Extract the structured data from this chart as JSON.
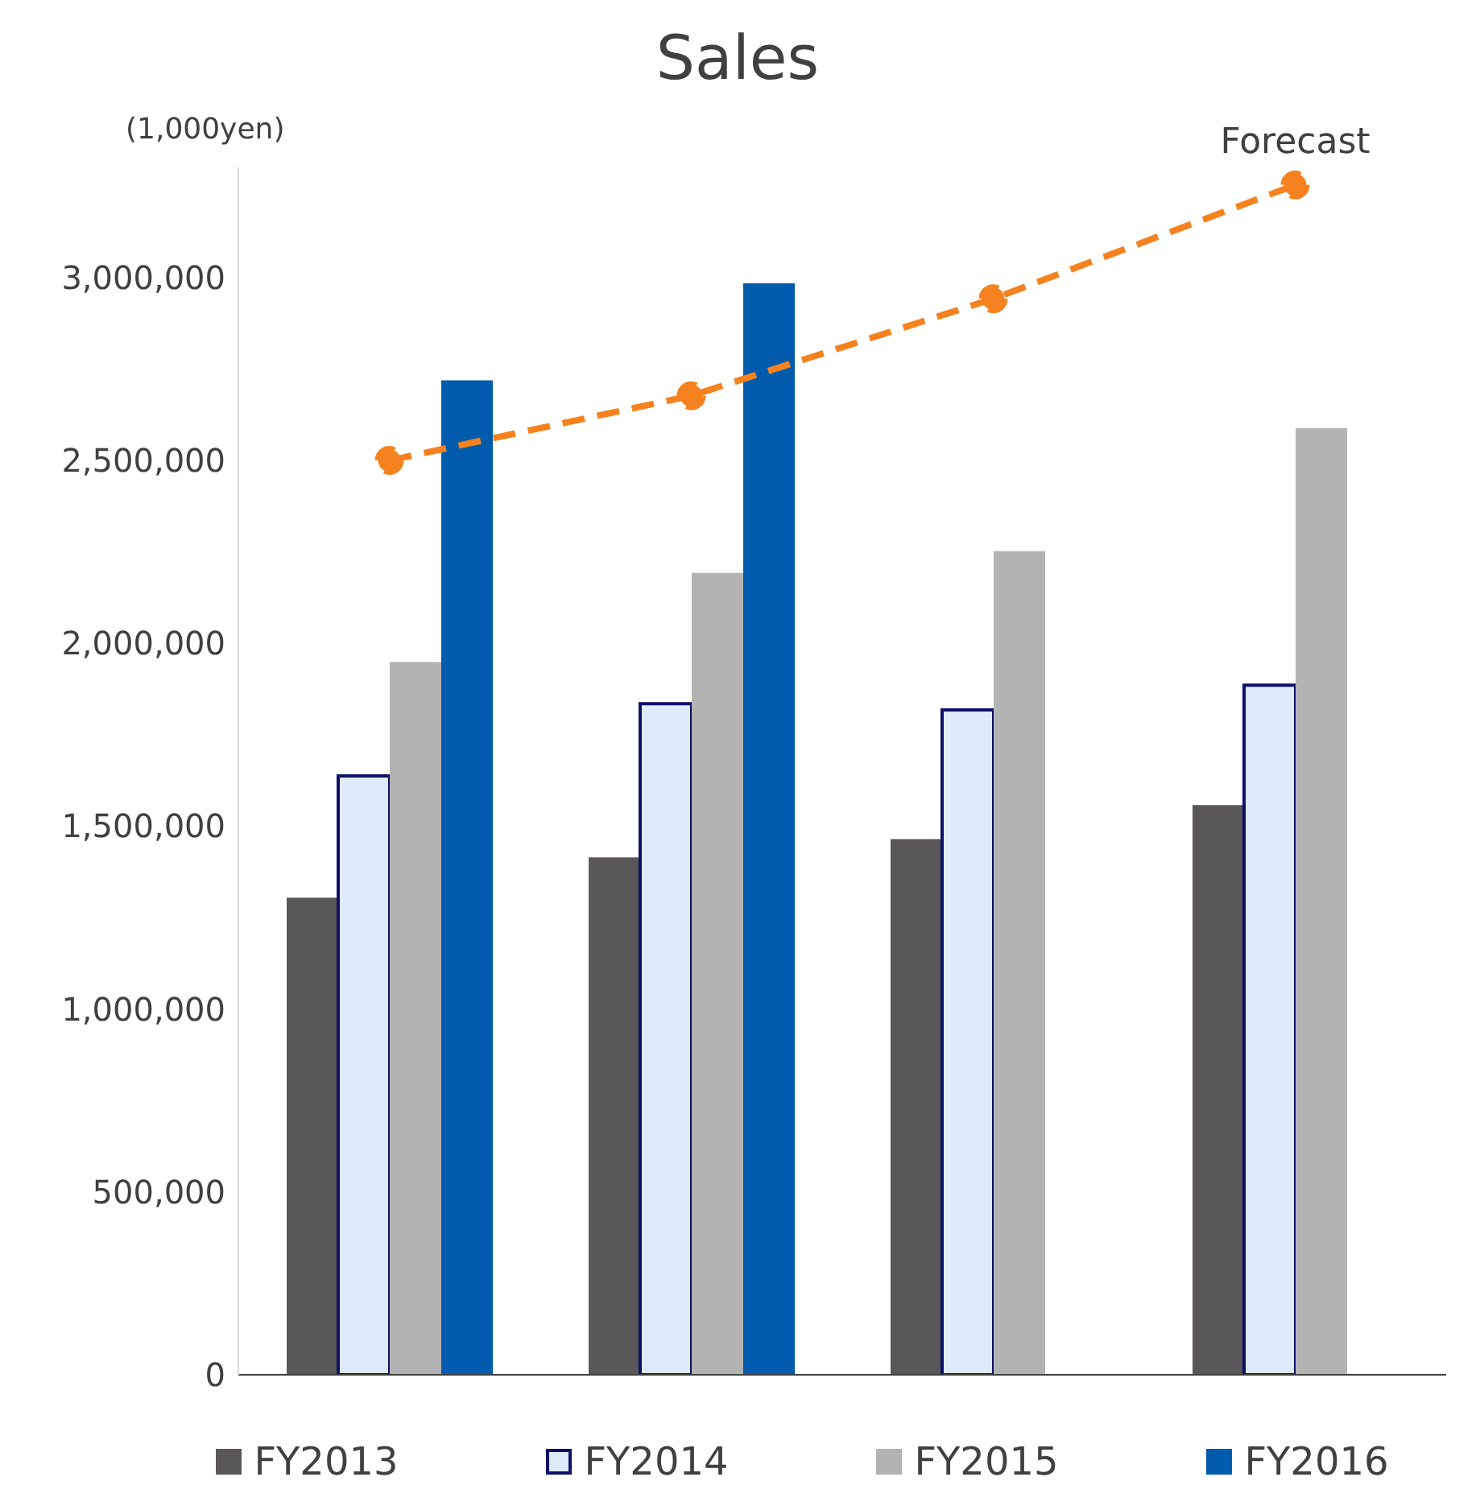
{
  "chart_data": {
    "type": "bar",
    "title": "Sales",
    "ylabel": "(1,000yen)",
    "categories": [
      null,
      null,
      null,
      null
    ],
    "series": [
      {
        "name": "FY2013",
        "color": "#595757",
        "values": [
          1304000,
          1414000,
          1464000,
          1557000
        ]
      },
      {
        "name": "FY2014",
        "color": "#ddebfa",
        "values": [
          1637000,
          1834000,
          1817000,
          1885000
        ]
      },
      {
        "name": "FY2015",
        "color": "#b3b3b3",
        "values": [
          1948000,
          2192000,
          2251000,
          2587000
        ]
      },
      {
        "name": "FY2016",
        "color": "#005bac",
        "values": [
          2718000,
          2983000,
          null,
          null
        ]
      },
      {
        "name": "Forecast",
        "type": "line",
        "color": "#f5821f",
        "values": [
          2499000,
          2676000,
          2941000,
          3252000
        ]
      }
    ],
    "ylim": [
      0,
      3300000
    ],
    "yticks": [
      0,
      {
        "value": 500000,
        "label": "500,000"
      },
      {
        "value": 1000000,
        "label": "1,000,000"
      },
      {
        "value": 1500000,
        "label": "1,500,000"
      },
      {
        "value": 2000000,
        "label": "2,000,000"
      },
      {
        "value": 2500000,
        "label": "2,500,000"
      },
      {
        "value": 3000000,
        "label": "3,000,000"
      }
    ],
    "legend": "bottom",
    "marker": "circle",
    "line_style": "dashed"
  }
}
